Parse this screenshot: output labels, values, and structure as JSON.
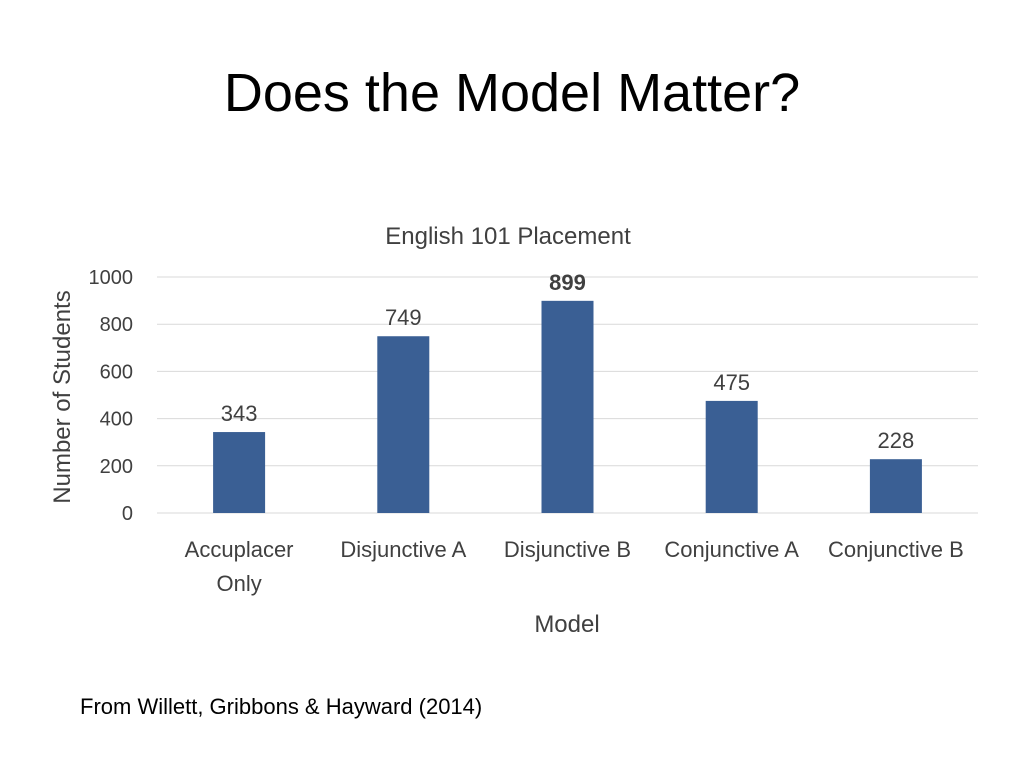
{
  "slide": {
    "title": "Does the Model Matter?",
    "source": "From Willett, Gribbons & Hayward (2014)"
  },
  "chart_data": {
    "type": "bar",
    "title": "English 101 Placement",
    "xlabel": "Model",
    "ylabel": "Number of Students",
    "categories": [
      [
        "Accuplacer",
        "Only"
      ],
      [
        "Disjunctive A"
      ],
      [
        "Disjunctive B"
      ],
      [
        "Conjunctive A"
      ],
      [
        "Conjunctive B"
      ]
    ],
    "series": [
      {
        "values": [
          343,
          749,
          899,
          475,
          228
        ],
        "data_labels": [
          "343",
          "749",
          "899",
          "475",
          "228"
        ],
        "bold_labels": [
          false,
          false,
          true,
          false,
          false
        ]
      }
    ],
    "ylim": [
      0,
      1000
    ],
    "yticks": [
      0,
      200,
      400,
      600,
      800,
      1000
    ],
    "grid": true,
    "legend": "none",
    "colors": {
      "bar": "#3A5F94",
      "grid": "#D9D9D9",
      "text": "#404040"
    }
  }
}
